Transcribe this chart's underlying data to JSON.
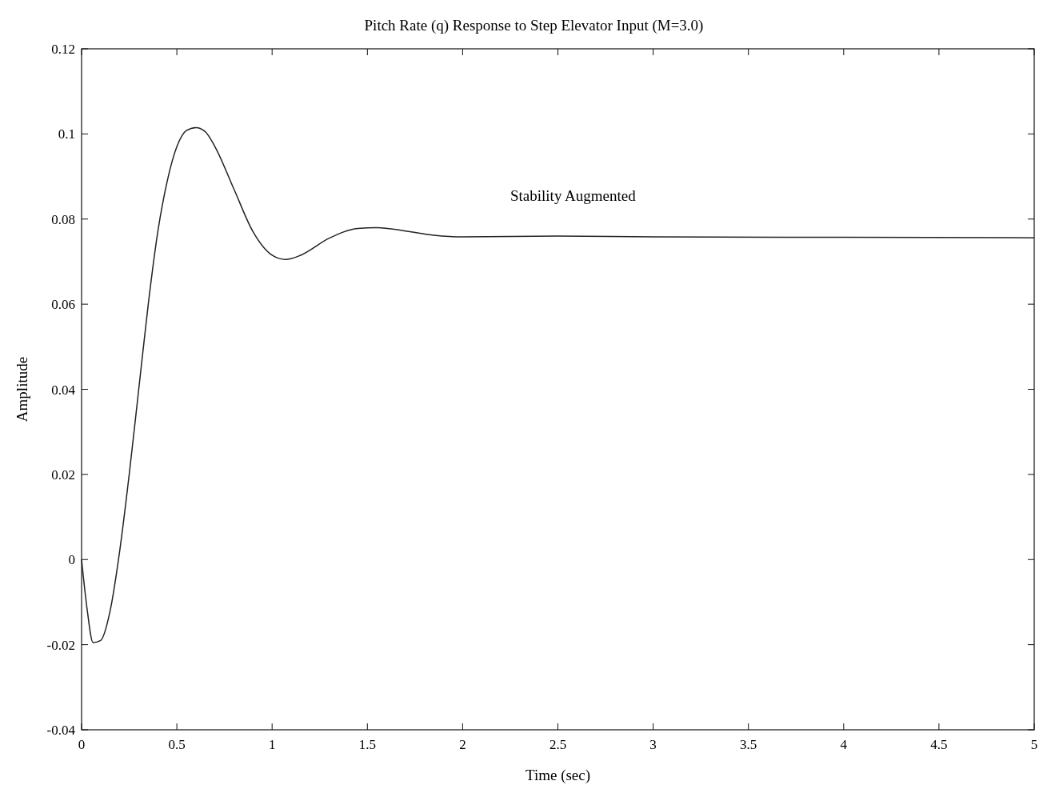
{
  "chart_data": {
    "type": "line",
    "title": "Pitch Rate (q) Response to Step Elevator Input (M=3.0)",
    "xlabel": "Time (sec)",
    "ylabel": "Amplitude",
    "annotations": [
      "Stability Augmented"
    ],
    "xlim": [
      0,
      5
    ],
    "xticks": [
      0,
      0.5,
      1,
      1.5,
      2,
      2.5,
      3,
      3.5,
      4,
      4.5,
      5
    ],
    "ylim": [
      -0.04,
      0.12
    ],
    "yticks": [
      -0.04,
      -0.02,
      0,
      0.02,
      0.04,
      0.06,
      0.08,
      0.1,
      0.12
    ],
    "series": [
      {
        "color": "#222222",
        "x": [
          0,
          0.03,
          0.06,
          0.1,
          0.15,
          0.2,
          0.25,
          0.3,
          0.35,
          0.4,
          0.45,
          0.5,
          0.55,
          0.6,
          0.65,
          0.7,
          0.8,
          0.9,
          1.0,
          1.07,
          1.15,
          1.3,
          1.45,
          1.55,
          1.7,
          1.85,
          2.0,
          2.5,
          3,
          4,
          5
        ],
        "values": [
          0,
          -0.012,
          -0.0195,
          -0.019,
          -0.012,
          0.002,
          0.02,
          0.04,
          0.06,
          0.077,
          0.089,
          0.097,
          0.1008,
          0.1015,
          0.1005,
          0.097,
          0.087,
          0.077,
          0.0715,
          0.0705,
          0.0715,
          0.0755,
          0.0778,
          0.078,
          0.0772,
          0.0762,
          0.0758,
          0.076,
          0.0758,
          0.0757,
          0.0756
        ]
      }
    ]
  }
}
